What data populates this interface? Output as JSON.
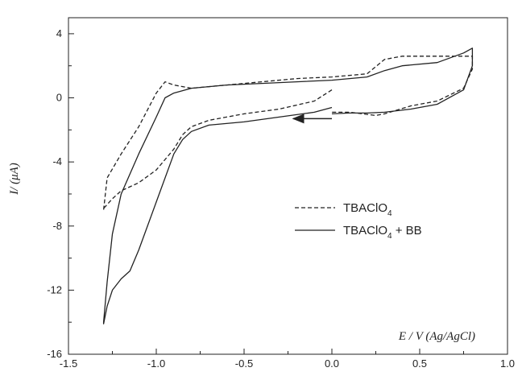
{
  "chart_data": {
    "type": "line",
    "title": "",
    "xlabel": "E / V (Ag/AgCl)",
    "ylabel": "I/ (μA)",
    "xlim": [
      -1.5,
      1.0
    ],
    "ylim": [
      -16,
      5
    ],
    "xticks": [
      -1.5,
      -1.0,
      -0.5,
      0.0,
      0.5,
      1.0
    ],
    "xtick_labels": [
      "-1.5",
      "-1.0",
      "-0.5",
      "0.0",
      "0.5",
      "1.0"
    ],
    "yticks": [
      -16,
      -12,
      -8,
      -4,
      0,
      4
    ],
    "ytick_labels": [
      "-16",
      "-12",
      "-8",
      "-4",
      "0",
      "4"
    ],
    "grid": false,
    "legend_position": "center-right",
    "annotations": [
      {
        "type": "arrow",
        "from": [
          -0.0,
          -1.3
        ],
        "to": [
          -0.22,
          -1.3
        ]
      }
    ],
    "series": [
      {
        "name": "TBAClO4",
        "name_base": "TBAClO",
        "name_sub": "4",
        "name_suffix": "",
        "style": "dashed",
        "x": [
          0.0,
          -0.1,
          -0.3,
          -0.5,
          -0.7,
          -0.8,
          -0.85,
          -0.9,
          -1.0,
          -1.1,
          -1.2,
          -1.25,
          -1.3,
          -1.3,
          -1.28,
          -1.2,
          -1.1,
          -1.0,
          -0.95,
          -0.9,
          -0.8,
          -0.6,
          -0.4,
          -0.2,
          0.0,
          0.2,
          0.3,
          0.4,
          0.6,
          0.75,
          0.8,
          0.8,
          0.75,
          0.6,
          0.45,
          0.3,
          0.25,
          0.1,
          0.0
        ],
        "y": [
          0.5,
          -0.2,
          -0.7,
          -1.0,
          -1.4,
          -1.8,
          -2.3,
          -3.2,
          -4.5,
          -5.3,
          -5.8,
          -6.3,
          -6.9,
          -7.0,
          -5.0,
          -3.5,
          -1.8,
          0.3,
          1.0,
          0.8,
          0.6,
          0.8,
          1.0,
          1.2,
          1.3,
          1.5,
          2.4,
          2.6,
          2.6,
          2.6,
          2.6,
          1.8,
          0.6,
          -0.2,
          -0.5,
          -1.0,
          -1.1,
          -0.9,
          -0.9
        ]
      },
      {
        "name": "TBAClO4 + BB",
        "name_base": "TBAClO",
        "name_sub": "4",
        "name_suffix": " + BB",
        "style": "solid",
        "x": [
          0.0,
          -0.1,
          -0.3,
          -0.5,
          -0.7,
          -0.8,
          -0.85,
          -0.9,
          -1.0,
          -1.1,
          -1.15,
          -1.2,
          -1.25,
          -1.28,
          -1.3,
          -1.3,
          -1.28,
          -1.25,
          -1.2,
          -1.1,
          -1.0,
          -0.95,
          -0.9,
          -0.8,
          -0.6,
          -0.4,
          -0.2,
          0.0,
          0.2,
          0.3,
          0.4,
          0.6,
          0.75,
          0.8,
          0.8,
          0.75,
          0.6,
          0.45,
          0.3,
          0.2,
          0.1,
          0.0
        ],
        "y": [
          -0.6,
          -0.9,
          -1.2,
          -1.5,
          -1.7,
          -2.1,
          -2.6,
          -3.5,
          -6.5,
          -9.5,
          -10.8,
          -11.3,
          -12.0,
          -13.0,
          -14.1,
          -14.0,
          -11.5,
          -8.5,
          -6.0,
          -3.5,
          -1.2,
          0.0,
          0.3,
          0.6,
          0.8,
          0.9,
          1.0,
          1.1,
          1.3,
          1.7,
          2.0,
          2.2,
          2.8,
          3.1,
          2.0,
          0.5,
          -0.4,
          -0.7,
          -0.9,
          -0.95,
          -0.95,
          -1.0
        ]
      }
    ]
  }
}
